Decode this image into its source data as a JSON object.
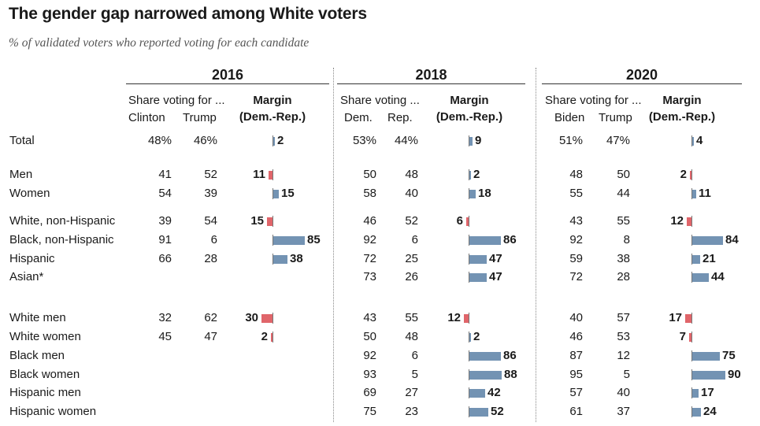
{
  "header": {
    "title": "The gender gap narrowed among White voters",
    "subtitle": "% of validated voters who reported voting for each candidate"
  },
  "chart_data": {
    "type": "table",
    "title": "The gender gap narrowed among White voters",
    "subtitle": "% of validated voters who reported voting for each candidate",
    "margin_header": "Margin",
    "margin_sub": "(Dem.-Rep.)",
    "years": [
      {
        "year": "2016",
        "share_label": "Share voting for ...",
        "dem_label": "Clinton",
        "rep_label": "Trump"
      },
      {
        "year": "2018",
        "share_label": "Share voting ...",
        "dem_label": "Dem.",
        "rep_label": "Rep."
      },
      {
        "year": "2020",
        "share_label": "Share voting for ...",
        "dem_label": "Biden",
        "rep_label": "Trump"
      }
    ],
    "rows": [
      {
        "label": "Total",
        "values": [
          {
            "dem": "48%",
            "rep": "46%",
            "margin": 2
          },
          {
            "dem": "53%",
            "rep": "44%",
            "margin": 9
          },
          {
            "dem": "51%",
            "rep": "47%",
            "margin": 4
          }
        ]
      },
      {
        "label": "Men",
        "values": [
          {
            "dem": "41",
            "rep": "52",
            "margin": -11
          },
          {
            "dem": "50",
            "rep": "48",
            "margin": 2
          },
          {
            "dem": "48",
            "rep": "50",
            "margin": -2
          }
        ]
      },
      {
        "label": "Women",
        "values": [
          {
            "dem": "54",
            "rep": "39",
            "margin": 15
          },
          {
            "dem": "58",
            "rep": "40",
            "margin": 18
          },
          {
            "dem": "55",
            "rep": "44",
            "margin": 11
          }
        ]
      },
      {
        "label": "White, non-Hispanic",
        "values": [
          {
            "dem": "39",
            "rep": "54",
            "margin": -15
          },
          {
            "dem": "46",
            "rep": "52",
            "margin": -6
          },
          {
            "dem": "43",
            "rep": "55",
            "margin": -12
          }
        ]
      },
      {
        "label": "Black, non-Hispanic",
        "values": [
          {
            "dem": "91",
            "rep": "6",
            "margin": 85
          },
          {
            "dem": "92",
            "rep": "6",
            "margin": 86
          },
          {
            "dem": "92",
            "rep": "8",
            "margin": 84
          }
        ]
      },
      {
        "label": "Hispanic",
        "values": [
          {
            "dem": "66",
            "rep": "28",
            "margin": 38
          },
          {
            "dem": "72",
            "rep": "25",
            "margin": 47
          },
          {
            "dem": "59",
            "rep": "38",
            "margin": 21
          }
        ]
      },
      {
        "label": "Asian*",
        "values": [
          null,
          {
            "dem": "73",
            "rep": "26",
            "margin": 47
          },
          {
            "dem": "72",
            "rep": "28",
            "margin": 44
          }
        ]
      },
      {
        "label": "White men",
        "values": [
          {
            "dem": "32",
            "rep": "62",
            "margin": -30
          },
          {
            "dem": "43",
            "rep": "55",
            "margin": -12
          },
          {
            "dem": "40",
            "rep": "57",
            "margin": -17
          }
        ]
      },
      {
        "label": "White women",
        "values": [
          {
            "dem": "45",
            "rep": "47",
            "margin": -2
          },
          {
            "dem": "50",
            "rep": "48",
            "margin": 2
          },
          {
            "dem": "46",
            "rep": "53",
            "margin": -7
          }
        ]
      },
      {
        "label": "Black men",
        "values": [
          null,
          {
            "dem": "92",
            "rep": "6",
            "margin": 86
          },
          {
            "dem": "87",
            "rep": "12",
            "margin": 75
          }
        ]
      },
      {
        "label": "Black women",
        "values": [
          null,
          {
            "dem": "93",
            "rep": "5",
            "margin": 88
          },
          {
            "dem": "95",
            "rep": "5",
            "margin": 90
          }
        ]
      },
      {
        "label": "Hispanic men",
        "values": [
          null,
          {
            "dem": "69",
            "rep": "27",
            "margin": 42
          },
          {
            "dem": "57",
            "rep": "40",
            "margin": 17
          }
        ]
      },
      {
        "label": "Hispanic women",
        "values": [
          null,
          {
            "dem": "75",
            "rep": "23",
            "margin": 52
          },
          {
            "dem": "61",
            "rep": "37",
            "margin": 24
          }
        ]
      }
    ],
    "colors": {
      "dem": "#7393b3",
      "rep": "#e0656a"
    }
  }
}
